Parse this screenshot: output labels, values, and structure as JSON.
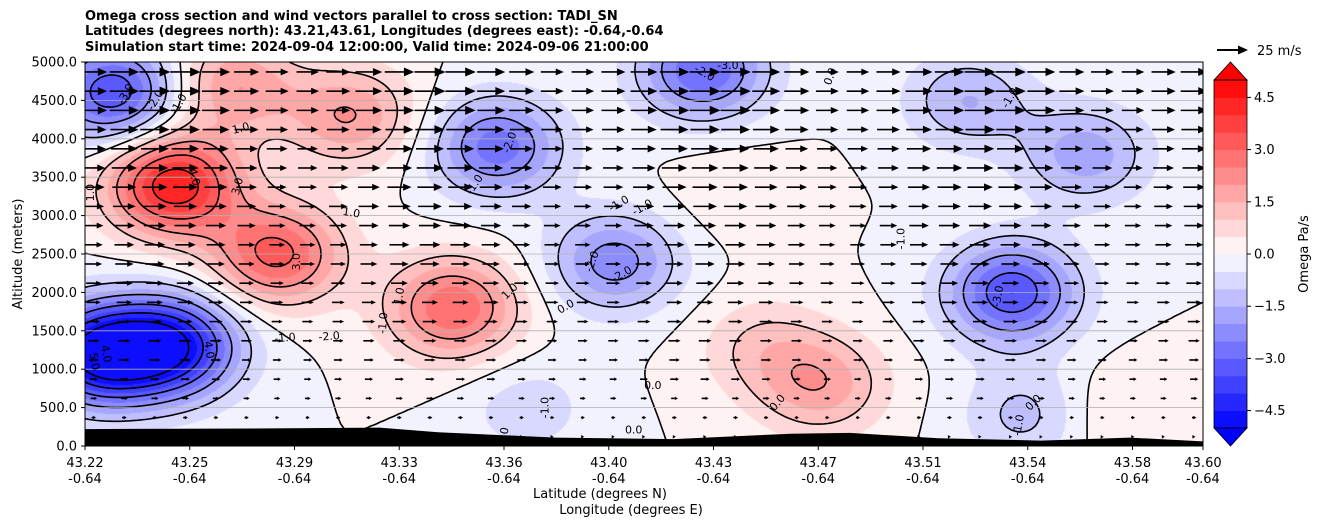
{
  "chart_data": {
    "type": "heatmap",
    "title_lines": [
      "Omega cross section and wind vectors parallel to cross section: TADI_SN",
      "Latitudes (degrees north): 43.21,43.61, Longitudes (degrees east): -0.64,-0.64",
      "Simulation start time: 2024-09-04 12:00:00, Valid time: 2024-09-06 21:00:00"
    ],
    "ylabel": "Altitude (meters)",
    "xlabel_lines": [
      "Latitude (degrees N)",
      "Longitude (degrees E)"
    ],
    "x_ticks": [
      {
        "lat": "43.22",
        "lon": "-0.64"
      },
      {
        "lat": "43.25",
        "lon": "-0.64"
      },
      {
        "lat": "43.29",
        "lon": "-0.64"
      },
      {
        "lat": "43.33",
        "lon": "-0.64"
      },
      {
        "lat": "43.36",
        "lon": "-0.64"
      },
      {
        "lat": "43.40",
        "lon": "-0.64"
      },
      {
        "lat": "43.43",
        "lon": "-0.64"
      },
      {
        "lat": "43.47",
        "lon": "-0.64"
      },
      {
        "lat": "43.51",
        "lon": "-0.64"
      },
      {
        "lat": "43.54",
        "lon": "-0.64"
      },
      {
        "lat": "43.58",
        "lon": "-0.64"
      },
      {
        "lat": "43.60",
        "lon": "-0.64"
      }
    ],
    "y_ticks": [
      "0.0",
      "500.0",
      "1000.0",
      "1500.0",
      "2000.0",
      "2500.0",
      "3000.0",
      "3500.0",
      "4000.0",
      "4500.0",
      "5000.0"
    ],
    "y_tick_values": [
      0,
      500,
      1000,
      1500,
      2000,
      2500,
      3000,
      3500,
      4000,
      4500,
      5000
    ],
    "ylim": [
      0,
      5000
    ],
    "grid": "horizontal",
    "colorbar": {
      "label": "Omega Pa/s",
      "ticks": [
        "4.5",
        "3.0",
        "1.5",
        "0.0",
        "−1.5",
        "−3.0",
        "−4.5"
      ],
      "tick_values": [
        4.5,
        3.0,
        1.5,
        0.0,
        -1.5,
        -3.0,
        -4.5
      ],
      "range": [
        -5,
        5
      ],
      "colormap": "bwr",
      "extend": "both"
    },
    "quiver_key": {
      "label": "25 m/s",
      "speed": 25
    },
    "wind_speed_range_ms": [
      2,
      25
    ],
    "omega_centers": [
      {
        "x": 43.25,
        "alt": 3400,
        "omega": 4.5
      },
      {
        "x": 43.285,
        "alt": 2500,
        "omega": 3.2
      },
      {
        "x": 43.31,
        "alt": 4300,
        "omega": 2.0
      },
      {
        "x": 43.345,
        "alt": 1800,
        "omega": 3.0
      },
      {
        "x": 43.27,
        "alt": 4700,
        "omega": 2.0
      },
      {
        "x": 43.47,
        "alt": 800,
        "omega": 1.8
      },
      {
        "x": 43.45,
        "alt": 1300,
        "omega": 1.0
      },
      {
        "x": 43.57,
        "alt": 400,
        "omega": 0.6
      },
      {
        "x": 43.44,
        "alt": 3300,
        "omega": 0.4
      },
      {
        "x": 43.225,
        "alt": 1200,
        "omega": -5.2
      },
      {
        "x": 43.25,
        "alt": 1300,
        "omega": -4.5
      },
      {
        "x": 43.23,
        "alt": 4600,
        "omega": -3.5
      },
      {
        "x": 43.36,
        "alt": 3900,
        "omega": -2.8
      },
      {
        "x": 43.43,
        "alt": 4900,
        "omega": -3.0
      },
      {
        "x": 43.4,
        "alt": 2400,
        "omega": -2.3
      },
      {
        "x": 43.535,
        "alt": 2000,
        "omega": -3.5
      },
      {
        "x": 43.56,
        "alt": 3800,
        "omega": -1.8
      },
      {
        "x": 43.52,
        "alt": 4500,
        "omega": -1.5
      },
      {
        "x": 43.37,
        "alt": 500,
        "omega": -0.8
      },
      {
        "x": 43.54,
        "alt": 400,
        "omega": -1.2
      }
    ],
    "contour_labels": [
      {
        "text": "-3.0",
        "x": 43.234,
        "alt": 4580,
        "angle": -60
      },
      {
        "text": "-2.0",
        "x": 43.244,
        "alt": 4500,
        "angle": -60
      },
      {
        "text": "-1.0",
        "x": 43.252,
        "alt": 4450,
        "angle": -60
      },
      {
        "text": "1.0",
        "x": 43.273,
        "alt": 4130,
        "angle": -15
      },
      {
        "text": "4.0",
        "x": 43.257,
        "alt": 3500,
        "angle": 75
      },
      {
        "text": "3.0",
        "x": 43.272,
        "alt": 3380,
        "angle": -75
      },
      {
        "text": "3.0",
        "x": 43.292,
        "alt": 2400,
        "angle": -90
      },
      {
        "text": "1.0",
        "x": 43.222,
        "alt": 3300,
        "angle": -90
      },
      {
        "text": "1.0",
        "x": 43.3105,
        "alt": 3030,
        "angle": 10
      },
      {
        "text": "-1.0",
        "x": 43.288,
        "alt": 1400,
        "angle": -5
      },
      {
        "text": "-2.0",
        "x": 43.303,
        "alt": 1420,
        "angle": -5
      },
      {
        "text": "-1.0",
        "x": 43.3215,
        "alt": 1600,
        "angle": -85
      },
      {
        "text": "4.0",
        "x": 43.262,
        "alt": 1250,
        "angle": 80
      },
      {
        "text": "4.0",
        "x": 43.227,
        "alt": 1200,
        "angle": 80
      },
      {
        "text": "5.0",
        "x": 43.223,
        "alt": 1100,
        "angle": 80
      },
      {
        "text": "1.0",
        "x": 43.327,
        "alt": 1950,
        "angle": -80
      },
      {
        "text": "-1.0",
        "x": 43.3525,
        "alt": 3400,
        "angle": -55
      },
      {
        "text": "-2.0",
        "x": 43.3645,
        "alt": 3950,
        "angle": -70
      },
      {
        "text": "-2.0",
        "x": 43.4305,
        "alt": 4850,
        "angle": 30
      },
      {
        "text": "-3.0",
        "x": 43.4385,
        "alt": 4950,
        "angle": 0
      },
      {
        "text": "0.0",
        "x": 43.4735,
        "alt": 4810,
        "angle": -70
      },
      {
        "text": "-1.0",
        "x": 43.5345,
        "alt": 4530,
        "angle": -60
      },
      {
        "text": "1.0",
        "x": 43.3645,
        "alt": 2010,
        "angle": -45
      },
      {
        "text": "0.0",
        "x": 43.3835,
        "alt": 1810,
        "angle": -30
      },
      {
        "text": "-1.0",
        "x": 43.4015,
        "alt": 3150,
        "angle": -30
      },
      {
        "text": "-1.0",
        "x": 43.4095,
        "alt": 3100,
        "angle": -30
      },
      {
        "text": "-2.0",
        "x": 43.3925,
        "alt": 2400,
        "angle": -70
      },
      {
        "text": "-2.0",
        "x": 43.4025,
        "alt": 2230,
        "angle": -30
      },
      {
        "text": "-1.0",
        "x": 43.4975,
        "alt": 2700,
        "angle": -90
      },
      {
        "text": "-3.0",
        "x": 43.5305,
        "alt": 1950,
        "angle": -80
      },
      {
        "text": "0.0",
        "x": 43.413,
        "alt": 780,
        "angle": 0
      },
      {
        "text": "-1.0",
        "x": 43.3765,
        "alt": 500,
        "angle": -90
      },
      {
        "text": "0.0",
        "x": 43.4555,
        "alt": 560,
        "angle": -50
      },
      {
        "text": "0.0",
        "x": 43.4065,
        "alt": 200,
        "angle": 0
      },
      {
        "text": "0.0",
        "x": 43.3625,
        "alt": 130,
        "angle": -80
      },
      {
        "text": "0.0",
        "x": 43.5425,
        "alt": 560,
        "angle": -45
      },
      {
        "text": "-1.0",
        "x": 43.5375,
        "alt": 270,
        "angle": -80
      }
    ],
    "terrain_height_m": [
      {
        "x": 43.22,
        "alt": 220
      },
      {
        "x": 43.29,
        "alt": 230
      },
      {
        "x": 43.32,
        "alt": 240
      },
      {
        "x": 43.34,
        "alt": 180
      },
      {
        "x": 43.38,
        "alt": 110
      },
      {
        "x": 43.42,
        "alt": 90
      },
      {
        "x": 43.46,
        "alt": 160
      },
      {
        "x": 43.48,
        "alt": 170
      },
      {
        "x": 43.51,
        "alt": 100
      },
      {
        "x": 43.545,
        "alt": 70
      },
      {
        "x": 43.575,
        "alt": 110
      },
      {
        "x": 43.6,
        "alt": 60
      }
    ]
  }
}
